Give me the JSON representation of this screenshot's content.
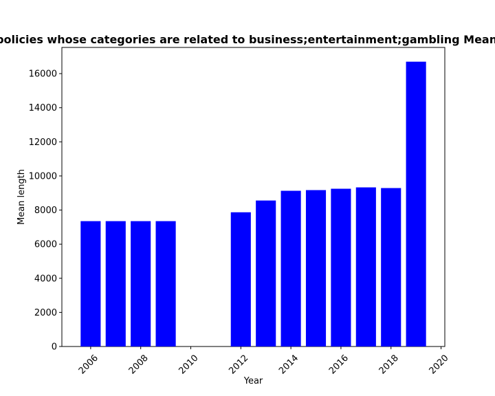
{
  "chart_data": {
    "type": "bar",
    "title": "Mean length in privacy policies whose categories are related to business;entertainment;gambling Mean length in privacy policies",
    "xlabel": "Year",
    "ylabel": "Mean length",
    "x": [
      2006,
      2007,
      2008,
      2009,
      2012,
      2013,
      2014,
      2015,
      2016,
      2017,
      2018,
      2019
    ],
    "values": [
      7350,
      7350,
      7350,
      7350,
      7870,
      8560,
      9130,
      9170,
      9250,
      9330,
      9290,
      16700
    ],
    "xlim": [
      2004.85,
      2020.15
    ],
    "ylim": [
      0,
      17535
    ],
    "xticks": [
      2006,
      2008,
      2010,
      2012,
      2014,
      2016,
      2018,
      2020
    ],
    "yticks": [
      0,
      2000,
      4000,
      6000,
      8000,
      10000,
      12000,
      14000,
      16000
    ],
    "bar_width": 0.8,
    "bar_color": "#0000ff",
    "grid": false
  }
}
